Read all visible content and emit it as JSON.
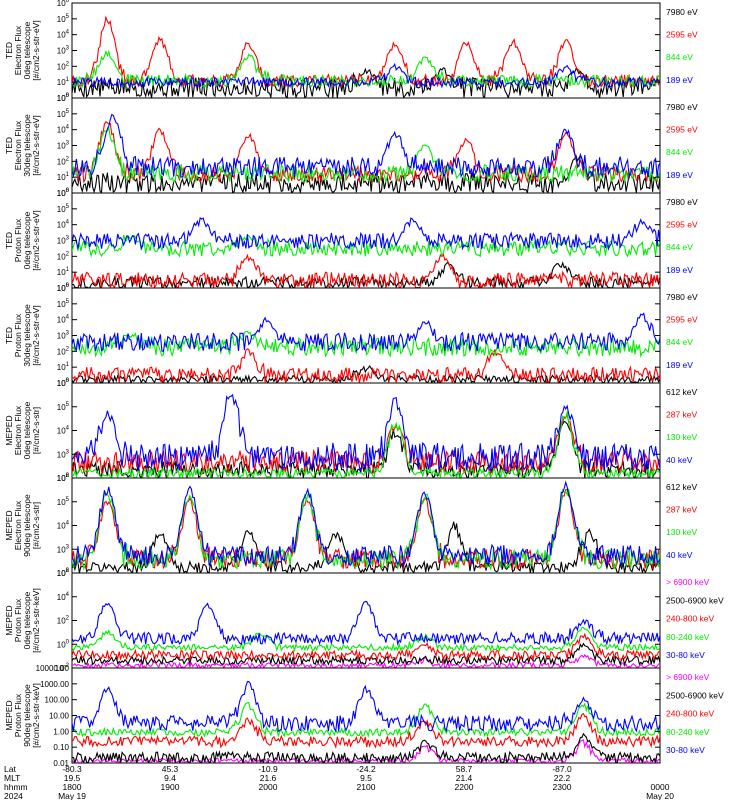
{
  "colors": {
    "black": "#000000",
    "red": "#ff0000",
    "green": "#00ee00",
    "blue": "#0000ff",
    "magenta": "#ff00ff"
  },
  "chart_data": [
    {
      "type": "line",
      "ylabel_lines": [
        "TED",
        "Electron Flux",
        "0deg telescope",
        "[#/cm2-s-str-eV]"
      ],
      "y_scale": "log",
      "yticks": [
        "10^0",
        "10^1",
        "10^2",
        "10^3",
        "10^4",
        "10^5",
        "10^6"
      ],
      "ylim": [
        1,
        1000000
      ],
      "series": [
        {
          "name": "7980 eV",
          "color": "black",
          "level": [
            1,
            20
          ],
          "peaks": [
            [
              0.5,
              50
            ],
            [
              0.63,
              60
            ],
            [
              0.86,
              50
            ]
          ]
        },
        {
          "name": "2595 eV",
          "color": "red",
          "level": [
            5,
            30
          ],
          "peaks": [
            [
              0.06,
              100000
            ],
            [
              0.15,
              5000
            ],
            [
              0.3,
              3000
            ],
            [
              0.55,
              3000
            ],
            [
              0.67,
              3000
            ],
            [
              0.75,
              4000
            ],
            [
              0.84,
              4000
            ]
          ]
        },
        {
          "name": "844 eV",
          "color": "green",
          "level": [
            5,
            30
          ],
          "peaks": [
            [
              0.06,
              800
            ],
            [
              0.3,
              500
            ],
            [
              0.6,
              300
            ]
          ]
        },
        {
          "name": "189 eV",
          "color": "blue",
          "level": [
            5,
            20
          ],
          "peaks": [
            [
              0.55,
              100
            ],
            [
              0.84,
              80
            ]
          ]
        }
      ]
    },
    {
      "type": "line",
      "ylabel_lines": [
        "TED",
        "Electron Flux",
        "30deg telescope",
        "[#/cm2-s-str-eV]"
      ],
      "y_scale": "log",
      "yticks": [
        "10^0",
        "10^1",
        "10^2",
        "10^3",
        "10^4",
        "10^5",
        "10^6"
      ],
      "ylim": [
        1,
        1000000
      ],
      "series": [
        {
          "name": "7980 eV",
          "color": "black",
          "level": [
            1,
            20
          ],
          "peaks": [
            [
              0.86,
              200
            ]
          ]
        },
        {
          "name": "2595 eV",
          "color": "red",
          "level": [
            5,
            50
          ],
          "peaks": [
            [
              0.06,
              30000
            ],
            [
              0.15,
              10000
            ],
            [
              0.3,
              5000
            ],
            [
              0.67,
              3000
            ],
            [
              0.84,
              5000
            ]
          ]
        },
        {
          "name": "844 eV",
          "color": "green",
          "level": [
            5,
            60
          ],
          "peaks": [
            [
              0.06,
              10000
            ],
            [
              0.6,
              1000
            ]
          ]
        },
        {
          "name": "189 eV",
          "color": "blue",
          "level": [
            10,
            200
          ],
          "peaks": [
            [
              0.07,
              100000
            ],
            [
              0.55,
              5000
            ],
            [
              0.84,
              10000
            ]
          ]
        }
      ]
    },
    {
      "type": "line",
      "ylabel_lines": [
        "TED",
        "Proton Flux",
        "0deg telescope",
        "[#/cm2-s-str-eV]"
      ],
      "y_scale": "log",
      "yticks": [
        "10^0",
        "10^1",
        "10^2",
        "10^3",
        "10^4",
        "10^5",
        "10^6"
      ],
      "ylim": [
        1,
        1000000
      ],
      "series": [
        {
          "name": "7980 eV",
          "color": "black",
          "level": [
            1,
            5
          ],
          "peaks": [
            [
              0.64,
              30
            ],
            [
              0.83,
              30
            ]
          ]
        },
        {
          "name": "2595 eV",
          "color": "red",
          "level": [
            1,
            10
          ],
          "peaks": [
            [
              0.3,
              100
            ],
            [
              0.63,
              100
            ]
          ]
        },
        {
          "name": "844 eV",
          "color": "green",
          "level": [
            100,
            1000
          ],
          "peaks": [
            [
              0.1,
              2000
            ],
            [
              0.3,
              1500
            ]
          ]
        },
        {
          "name": "189 eV",
          "color": "blue",
          "level": [
            300,
            3000
          ],
          "peaks": [
            [
              0.22,
              20000
            ],
            [
              0.58,
              20000
            ],
            [
              0.97,
              15000
            ]
          ]
        }
      ]
    },
    {
      "type": "line",
      "ylabel_lines": [
        "TED",
        "Proton Flux",
        "30deg telescope",
        "[#/cm2-s-str-eV]"
      ],
      "y_scale": "log",
      "yticks": [
        "10^0",
        "10^1",
        "10^2",
        "10^3",
        "10^4",
        "10^5",
        "10^6"
      ],
      "ylim": [
        1,
        1000000
      ],
      "series": [
        {
          "name": "7980 eV",
          "color": "black",
          "level": [
            1,
            3
          ],
          "peaks": [
            [
              0.5,
              10
            ]
          ]
        },
        {
          "name": "2595 eV",
          "color": "red",
          "level": [
            1,
            10
          ],
          "peaks": [
            [
              0.3,
              100
            ],
            [
              0.72,
              100
            ]
          ]
        },
        {
          "name": "844 eV",
          "color": "green",
          "level": [
            50,
            700
          ],
          "peaks": [
            [
              0.1,
              1500
            ],
            [
              0.3,
              1500
            ]
          ]
        },
        {
          "name": "189 eV",
          "color": "blue",
          "level": [
            100,
            1500
          ],
          "peaks": [
            [
              0.33,
              10000
            ],
            [
              0.6,
              8000
            ],
            [
              0.97,
              20000
            ]
          ]
        }
      ]
    },
    {
      "type": "line",
      "ylabel_lines": [
        "MEPED",
        "Electron Flux",
        "0deg telescope",
        "[#/cm2-s-str]"
      ],
      "y_scale": "log",
      "yticks": [
        "10^2",
        "10^3",
        "10^4",
        "10^5",
        "10^6"
      ],
      "ylim": [
        100,
        1000000
      ],
      "series": [
        {
          "name": "612 keV",
          "color": "black",
          "level": [
            100,
            500
          ],
          "peaks": [
            [
              0.55,
              10000
            ],
            [
              0.84,
              20000
            ]
          ]
        },
        {
          "name": "287 keV",
          "color": "red",
          "level": [
            150,
            1500
          ],
          "peaks": [
            [
              0.55,
              20000
            ],
            [
              0.84,
              40000
            ]
          ]
        },
        {
          "name": "130 keV",
          "color": "green",
          "level": [
            100,
            250
          ],
          "peaks": [
            [
              0.55,
              20000
            ],
            [
              0.84,
              50000
            ]
          ]
        },
        {
          "name": "40 keV",
          "color": "blue",
          "level": [
            200,
            3000
          ],
          "peaks": [
            [
              0.06,
              50000
            ],
            [
              0.27,
              500000
            ],
            [
              0.55,
              200000
            ],
            [
              0.84,
              100000
            ]
          ]
        }
      ]
    },
    {
      "type": "line",
      "ylabel_lines": [
        "MEPED",
        "Electron Flux",
        "90deg telescope",
        "[#/cm2-s-str]"
      ],
      "y_scale": "log",
      "yticks": [
        "10^2",
        "10^3",
        "10^4",
        "10^5",
        "10^6"
      ],
      "ylim": [
        100,
        1000000
      ],
      "series": [
        {
          "name": "612 keV",
          "color": "black",
          "level": [
            100,
            300
          ],
          "peaks": [
            [
              0.15,
              5000
            ],
            [
              0.3,
              5000
            ],
            [
              0.45,
              5000
            ],
            [
              0.65,
              10000
            ],
            [
              0.88,
              5000
            ]
          ]
        },
        {
          "name": "287 keV",
          "color": "red",
          "level": [
            150,
            1000
          ],
          "peaks": [
            [
              0.06,
              100000
            ],
            [
              0.2,
              100000
            ],
            [
              0.4,
              100000
            ],
            [
              0.6,
              100000
            ],
            [
              0.84,
              300000
            ]
          ]
        },
        {
          "name": "130 keV",
          "color": "green",
          "level": [
            150,
            1000
          ],
          "peaks": [
            [
              0.06,
              300000
            ],
            [
              0.2,
              200000
            ],
            [
              0.4,
              200000
            ],
            [
              0.6,
              200000
            ],
            [
              0.84,
              400000
            ]
          ]
        },
        {
          "name": "40 keV",
          "color": "blue",
          "level": [
            200,
            1500
          ],
          "peaks": [
            [
              0.06,
              400000
            ],
            [
              0.2,
              300000
            ],
            [
              0.4,
              300000
            ],
            [
              0.6,
              300000
            ],
            [
              0.84,
              500000
            ]
          ]
        }
      ]
    },
    {
      "type": "line",
      "ylabel_lines": [
        "MEPED",
        "Proton Flux",
        "0deg telescope",
        "[#/cm2-s-str-keV]"
      ],
      "y_scale": "log",
      "yticks": [
        "10^-2",
        "10^0",
        "10^2",
        "10^4",
        "10^6"
      ],
      "ylim": [
        0.01,
        1000000
      ],
      "series": [
        {
          "name": "> 6900 keV",
          "color": "magenta",
          "level": [
            0.01,
            0.03
          ],
          "peaks": [
            [
              0.6,
              0.05
            ],
            [
              0.87,
              0.1
            ]
          ]
        },
        {
          "name": "2500-6900 keV",
          "color": "black",
          "level": [
            0.02,
            0.1
          ],
          "peaks": [
            [
              0.87,
              1
            ]
          ]
        },
        {
          "name": "240-800 keV",
          "color": "red",
          "level": [
            0.05,
            0.3
          ],
          "peaks": [
            [
              0.6,
              1
            ],
            [
              0.87,
              5
            ]
          ]
        },
        {
          "name": "80-240 keV",
          "color": "green",
          "level": [
            0.3,
            1
          ],
          "peaks": [
            [
              0.06,
              10
            ],
            [
              0.32,
              10
            ],
            [
              0.6,
              5
            ],
            [
              0.87,
              20
            ]
          ]
        },
        {
          "name": "30-80 keV",
          "color": "blue",
          "level": [
            1,
            10
          ],
          "peaks": [
            [
              0.06,
              3000
            ],
            [
              0.23,
              2000
            ],
            [
              0.5,
              3000
            ],
            [
              0.87,
              100
            ]
          ]
        }
      ]
    },
    {
      "type": "line",
      "ylabel_lines": [
        "MEPED",
        "Proton Flux",
        "90deg telescope",
        "[#/cm2-s-str-keV]"
      ],
      "y_scale": "log",
      "yticks": [
        "0.01",
        "0.10",
        "1.00",
        "10.00",
        "100.00",
        "1000.00",
        "10000.00"
      ],
      "ylim": [
        0.01,
        10000
      ],
      "series": [
        {
          "name": "> 6900 keV",
          "color": "magenta",
          "level": [
            0.01,
            0.02
          ],
          "peaks": [
            [
              0.6,
              0.1
            ],
            [
              0.87,
              0.2
            ]
          ]
        },
        {
          "name": "2500-6900 keV",
          "color": "black",
          "level": [
            0.01,
            0.05
          ],
          "peaks": [
            [
              0.6,
              0.2
            ],
            [
              0.87,
              0.5
            ]
          ]
        },
        {
          "name": "240-800 keV",
          "color": "red",
          "level": [
            0.1,
            0.5
          ],
          "peaks": [
            [
              0.3,
              5
            ],
            [
              0.6,
              5
            ],
            [
              0.87,
              10
            ]
          ]
        },
        {
          "name": "80-240 keV",
          "color": "green",
          "level": [
            0.5,
            1.5
          ],
          "peaks": [
            [
              0.3,
              50
            ],
            [
              0.6,
              50
            ],
            [
              0.87,
              50
            ]
          ]
        },
        {
          "name": "30-80 keV",
          "color": "blue",
          "level": [
            1,
            10
          ],
          "peaks": [
            [
              0.06,
              500
            ],
            [
              0.3,
              1000
            ],
            [
              0.5,
              500
            ],
            [
              0.87,
              100
            ]
          ]
        }
      ]
    }
  ],
  "x_axis": {
    "row_labels": [
      "Lat",
      "MLT",
      "hhmm",
      "2024"
    ],
    "columns": [
      {
        "lat": "-80.3",
        "mlt": "19.5",
        "hhmm": "1800",
        "date": "May 19"
      },
      {
        "lat": "45.3",
        "mlt": "9.4",
        "hhmm": "1900",
        "date": ""
      },
      {
        "lat": "-10.9",
        "mlt": "21.6",
        "hhmm": "2000",
        "date": ""
      },
      {
        "lat": "-24.2",
        "mlt": "9.5",
        "hhmm": "2100",
        "date": ""
      },
      {
        "lat": "58.7",
        "mlt": "21.4",
        "hhmm": "2200",
        "date": ""
      },
      {
        "lat": "-87.0",
        "mlt": "22.2",
        "hhmm": "2300",
        "date": ""
      },
      {
        "lat": "",
        "mlt": "",
        "hhmm": "0000",
        "date": "May 20"
      }
    ]
  }
}
